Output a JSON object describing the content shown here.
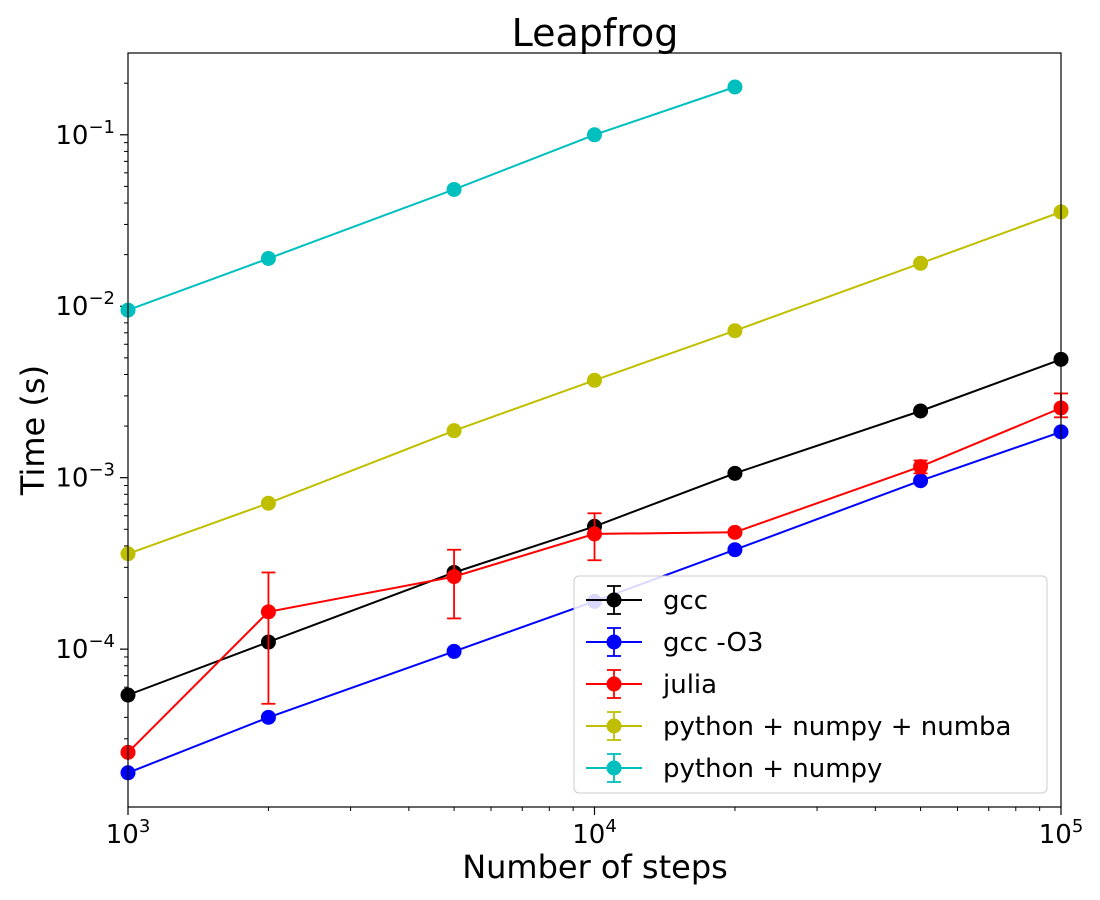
{
  "chart_data": {
    "type": "line",
    "title": "Leapfrog",
    "xlabel": "Number of steps",
    "ylabel": "Time (s)",
    "xscale": "log",
    "yscale": "log",
    "xlim": [
      1000,
      100000
    ],
    "ylim": [
      1.2e-05,
      0.3
    ],
    "grid": false,
    "legend_position": "lower-right",
    "x_ticks": [
      {
        "base": "10",
        "exp": "3",
        "value": 1000
      },
      {
        "base": "10",
        "exp": "4",
        "value": 10000
      },
      {
        "base": "10",
        "exp": "5",
        "value": 100000
      }
    ],
    "y_ticks": [
      {
        "base": "10",
        "exp": "−4",
        "value": 0.0001
      },
      {
        "base": "10",
        "exp": "−3",
        "value": 0.001
      },
      {
        "base": "10",
        "exp": "−2",
        "value": 0.01
      },
      {
        "base": "10",
        "exp": "−1",
        "value": 0.1
      }
    ],
    "series": [
      {
        "name": "gcc",
        "color": "#000000",
        "x": [
          1000,
          2000,
          5000,
          10000,
          20000,
          50000,
          100000
        ],
        "y": [
          5.4e-05,
          0.00011,
          0.00028,
          0.00052,
          0.00106,
          0.00245,
          0.0049
        ],
        "err": [
          0,
          0,
          0,
          0,
          0,
          0,
          0
        ]
      },
      {
        "name": "gcc -O3",
        "color": "#0000ff",
        "x": [
          1000,
          2000,
          5000,
          10000,
          20000,
          50000,
          100000
        ],
        "y": [
          1.9e-05,
          4e-05,
          9.7e-05,
          0.00019,
          0.00038,
          0.00096,
          0.00185
        ],
        "err": [
          0,
          0,
          0,
          0,
          0,
          0,
          0
        ]
      },
      {
        "name": "julia",
        "color": "#ff0000",
        "x": [
          1000,
          2000,
          5000,
          10000,
          20000,
          50000,
          100000
        ],
        "y": [
          2.5e-05,
          0.000165,
          0.000265,
          0.00047,
          0.00048,
          0.00116,
          0.00255
        ],
        "err_low": [
          0,
          0.000117,
          0.000114,
          0.00014,
          0,
          0.0001,
          0.0003
        ],
        "err_high": [
          0,
          0.000115,
          0.000115,
          0.00015,
          0,
          0.0001,
          0.00055
        ]
      },
      {
        "name": "python + numpy + numba",
        "color": "#bfbf00",
        "x": [
          1000,
          2000,
          5000,
          10000,
          20000,
          50000,
          100000
        ],
        "y": [
          0.00036,
          0.00071,
          0.00188,
          0.0037,
          0.0072,
          0.0178,
          0.0355
        ],
        "err": [
          0,
          0,
          0,
          0,
          0,
          0,
          0
        ]
      },
      {
        "name": "python + numpy",
        "color": "#00bfbf",
        "x": [
          1000,
          2000,
          5000,
          10000,
          20000
        ],
        "y": [
          0.0095,
          0.019,
          0.048,
          0.1,
          0.19
        ],
        "err": [
          0,
          0,
          0,
          0,
          0
        ]
      }
    ]
  }
}
